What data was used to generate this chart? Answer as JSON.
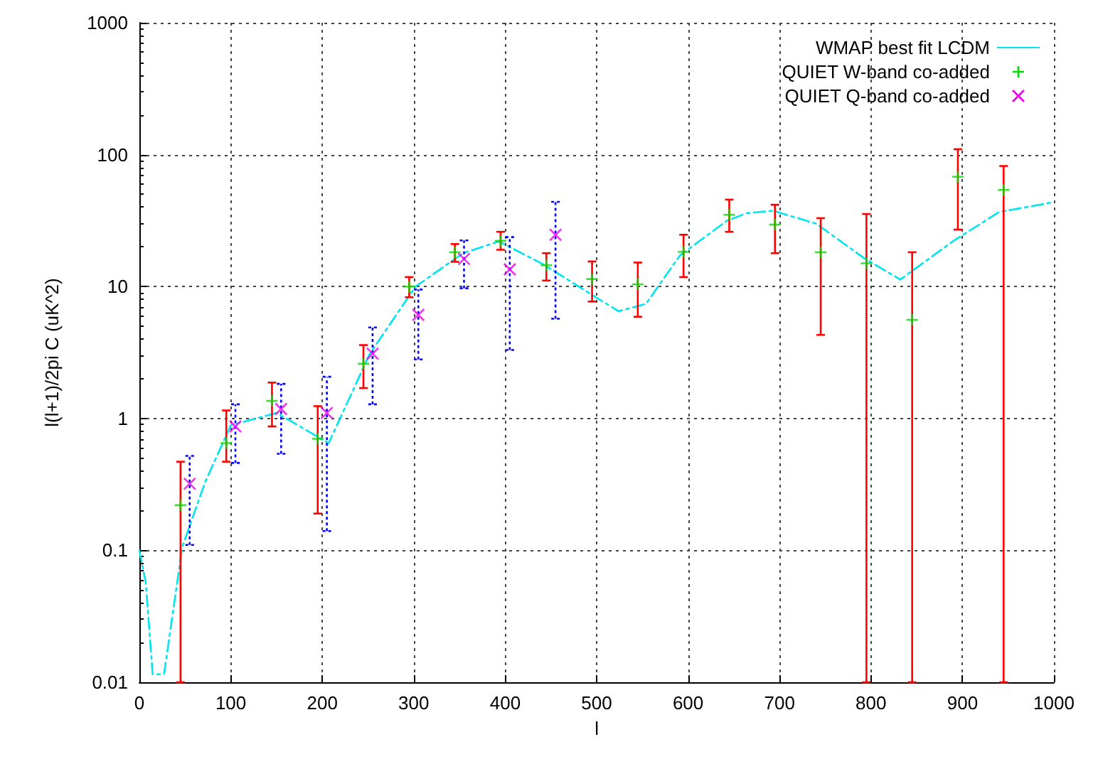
{
  "chart_data": {
    "type": "scatter",
    "xlabel": "l",
    "ylabel": "l(l+1)/2pi C (uK^2)",
    "xlim": [
      0,
      1000
    ],
    "xticks": [
      0,
      100,
      200,
      300,
      400,
      500,
      600,
      700,
      800,
      900,
      1000
    ],
    "ylim": [
      0.01,
      1000
    ],
    "yticks": [
      0.01,
      0.1,
      1,
      10,
      100,
      1000
    ],
    "log": "y",
    "grid": true,
    "legend": "top right",
    "series": [
      {
        "name": "WMAP best fit LCDM",
        "type": "line",
        "color": "#00e5ee",
        "marker": "none",
        "line_style": "dashed",
        "x": [
          0,
          7,
          14.5,
          27,
          47,
          72,
          100,
          150,
          207,
          252,
          302,
          354,
          393,
          442,
          492,
          524,
          554,
          591,
          642,
          664,
          693,
          740,
          792,
          832,
          891,
          940,
          990,
          1000
        ],
        "values": [
          0.1,
          0.057,
          0.0115,
          0.0115,
          0.107,
          0.33,
          0.89,
          1.1,
          0.65,
          3.1,
          10,
          17.9,
          22,
          14.7,
          8.9,
          6.5,
          7.4,
          17.2,
          31.4,
          36,
          37.5,
          30,
          16.5,
          11.3,
          22.4,
          36.7,
          42.4,
          44
        ]
      },
      {
        "name": "QUIET W-band co-added",
        "color": "#00dd00",
        "marker": "plus",
        "x": [
          45,
          95,
          145,
          195,
          245,
          295,
          345,
          395,
          445,
          495,
          545,
          595,
          645,
          695,
          745,
          795,
          845,
          895,
          945
        ],
        "values": [
          0.22,
          0.65,
          1.36,
          0.7,
          2.6,
          10,
          18.2,
          22.2,
          14.5,
          11.4,
          10.4,
          18.3,
          35,
          29.5,
          18.2,
          15,
          5.6,
          68,
          54
        ],
        "errors": [
          [
            0.01,
            0.47
          ],
          [
            0.47,
            1.15
          ],
          [
            0.87,
            1.87
          ],
          [
            0.19,
            1.24
          ],
          [
            1.7,
            3.6
          ],
          [
            8.3,
            11.8
          ],
          [
            15.4,
            21
          ],
          [
            19,
            26
          ],
          [
            11.1,
            17.9
          ],
          [
            7.7,
            15.5
          ],
          [
            5.9,
            15.2
          ],
          [
            11.8,
            24.7
          ],
          [
            26,
            45.6
          ],
          [
            17.9,
            41.7
          ],
          [
            4.3,
            33
          ],
          [
            0.01,
            35.5
          ],
          [
            0.01,
            18.2
          ],
          [
            27,
            110
          ],
          [
            0.01,
            82
          ]
        ]
      },
      {
        "name": "QUIET Q-band co-added",
        "color": "#ee00ee",
        "marker": "cross",
        "x": [
          55,
          105,
          155,
          205,
          255,
          305,
          355,
          405,
          455
        ],
        "values": [
          0.32,
          0.87,
          1.18,
          1.1,
          3.1,
          6.1,
          16.2,
          13.5,
          24.7
        ],
        "errors": [
          [
            0.11,
            0.52
          ],
          [
            0.46,
            1.28
          ],
          [
            0.54,
            1.83
          ],
          [
            0.14,
            2.07
          ],
          [
            1.28,
            4.9
          ],
          [
            2.8,
            9.5
          ],
          [
            9.7,
            22.4
          ],
          [
            3.3,
            23.7
          ],
          [
            5.7,
            43.9
          ]
        ]
      }
    ]
  }
}
